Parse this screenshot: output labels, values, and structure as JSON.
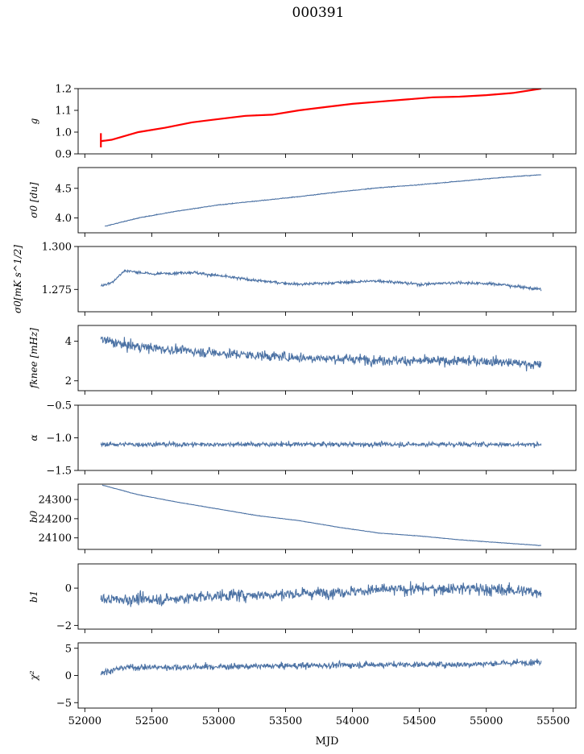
{
  "page": {
    "title": "000391"
  },
  "chart_data": {
    "type": "line",
    "shared_x": true,
    "xlabel": "MJD",
    "xlim": [
      51950,
      55670
    ],
    "xticks": [
      52000,
      52500,
      53000,
      53500,
      54000,
      54500,
      55000,
      55500
    ],
    "data_xrange": [
      52115,
      55410
    ],
    "colors": {
      "series": "#4c72a4",
      "fit": "#ff0000"
    },
    "panels": [
      {
        "name": "g",
        "ylabel": "g",
        "ylim": [
          0.9,
          1.2
        ],
        "yticks": [
          0.9,
          1.0,
          1.1,
          1.2
        ],
        "ytick_labels": [
          "0.9",
          "1.0",
          "1.1",
          "1.2"
        ],
        "series": [
          {
            "name": "g",
            "x": [
              52115,
              52200,
              52400,
              52600,
              52800,
              53000,
              53200,
              53400,
              53600,
              53800,
              54000,
              54200,
              54400,
              54600,
              54800,
              55000,
              55200,
              55410
            ],
            "values": [
              0.96,
              0.965,
              1.0,
              1.02,
              1.045,
              1.06,
              1.075,
              1.08,
              1.1,
              1.115,
              1.13,
              1.14,
              1.15,
              1.16,
              1.163,
              1.17,
              1.18,
              1.2
            ],
            "noise": 0.002
          },
          {
            "name": "fit",
            "x": [
              52120,
              52200,
              52400,
              52600,
              52800,
              53000,
              53200,
              53400,
              53600,
              53800,
              54000,
              54200,
              54400,
              54600,
              54800,
              55000,
              55200,
              55410
            ],
            "values": [
              0.958,
              0.965,
              1.0,
              1.02,
              1.045,
              1.06,
              1.075,
              1.08,
              1.1,
              1.115,
              1.13,
              1.14,
              1.15,
              1.16,
              1.163,
              1.17,
              1.18,
              1.2
            ]
          }
        ]
      },
      {
        "name": "sigma0-du",
        "ylabel": "σ0 [du]",
        "ylim": [
          3.75,
          4.85
        ],
        "yticks": [
          4.0,
          4.5
        ],
        "ytick_labels": [
          "4.0",
          "4.5"
        ],
        "series": [
          {
            "name": "sigma0",
            "x": [
              52150,
              52400,
              52700,
              53000,
              53300,
              53600,
              53900,
              54200,
              54500,
              54800,
              55100,
              55410
            ],
            "values": [
              3.86,
              4.0,
              4.12,
              4.22,
              4.29,
              4.36,
              4.44,
              4.51,
              4.56,
              4.62,
              4.68,
              4.73
            ],
            "noise": 0.008
          }
        ]
      },
      {
        "name": "sigma0-mks",
        "ylabel": "σ0[mK s^1/2]",
        "ylim": [
          1.262,
          1.3
        ],
        "yticks": [
          1.275,
          1.3
        ],
        "ytick_labels": [
          "1.275",
          "1.300"
        ],
        "series": [
          {
            "name": "sigma0-mks",
            "x": [
              52120,
              52200,
              52300,
              52500,
              52800,
              53000,
              53300,
              53600,
              53900,
              54200,
              54500,
              54800,
              55100,
              55300,
              55410
            ],
            "values": [
              1.277,
              1.279,
              1.286,
              1.284,
              1.285,
              1.283,
              1.28,
              1.278,
              1.279,
              1.28,
              1.278,
              1.279,
              1.278,
              1.276,
              1.275
            ],
            "noise": 0.0012
          }
        ]
      },
      {
        "name": "fknee",
        "ylabel": "fknee [mHz]",
        "ylim": [
          1.5,
          4.8
        ],
        "yticks": [
          2,
          4
        ],
        "ytick_labels": [
          "2",
          "4"
        ],
        "series": [
          {
            "name": "fknee",
            "x": [
              52120,
              52300,
              52600,
              53000,
              53500,
              54000,
              54500,
              55000,
              55410
            ],
            "values": [
              4.1,
              3.8,
              3.6,
              3.4,
              3.2,
              3.1,
              3.0,
              3.0,
              2.8
            ],
            "noise": 0.35
          }
        ]
      },
      {
        "name": "alpha",
        "ylabel": "α",
        "ylim": [
          -1.5,
          -0.5
        ],
        "yticks": [
          -1.5,
          -1.0,
          -0.5
        ],
        "ytick_labels": [
          "−1.5",
          "−1.0",
          "−0.5"
        ],
        "series": [
          {
            "name": "alpha",
            "x": [
              52120,
              53000,
              54000,
              55000,
              55410
            ],
            "values": [
              -1.1,
              -1.1,
              -1.1,
              -1.1,
              -1.1
            ],
            "noise": 0.05
          }
        ]
      },
      {
        "name": "b0",
        "ylabel": "b0",
        "ylim": [
          24040,
          24380
        ],
        "yticks": [
          24100,
          24200,
          24300
        ],
        "ytick_labels": [
          "24100",
          "24200",
          "24300"
        ],
        "series": [
          {
            "name": "b0",
            "x": [
              52130,
              52400,
              52700,
              53000,
              53300,
              53600,
              53900,
              54200,
              54500,
              54800,
              55100,
              55410
            ],
            "values": [
              24375,
              24325,
              24285,
              24250,
              24215,
              24190,
              24155,
              24125,
              24110,
              24090,
              24075,
              24060
            ],
            "noise": 1.5
          }
        ]
      },
      {
        "name": "b1",
        "ylabel": "b1",
        "ylim": [
          -2.2,
          1.3
        ],
        "yticks": [
          -2,
          0
        ],
        "ytick_labels": [
          "−2",
          "0"
        ],
        "series": [
          {
            "name": "b1",
            "x": [
              52120,
              52600,
              53000,
              53600,
              54200,
              54800,
              55410
            ],
            "values": [
              -0.6,
              -0.6,
              -0.4,
              -0.3,
              -0.1,
              0.0,
              -0.2
            ],
            "noise": 0.45
          }
        ]
      },
      {
        "name": "chi2",
        "ylabel": "χ²",
        "ylim": [
          -6,
          6
        ],
        "yticks": [
          -5,
          0,
          5
        ],
        "ytick_labels": [
          "−5",
          "0",
          "5"
        ],
        "series": [
          {
            "name": "chi2",
            "x": [
              52120,
              52300,
              52600,
              53000,
              53600,
              54200,
              54800,
              55410
            ],
            "values": [
              0.5,
              1.5,
              1.5,
              1.6,
              1.8,
              2.0,
              2.0,
              2.5
            ],
            "noise": 0.8
          }
        ]
      }
    ]
  }
}
